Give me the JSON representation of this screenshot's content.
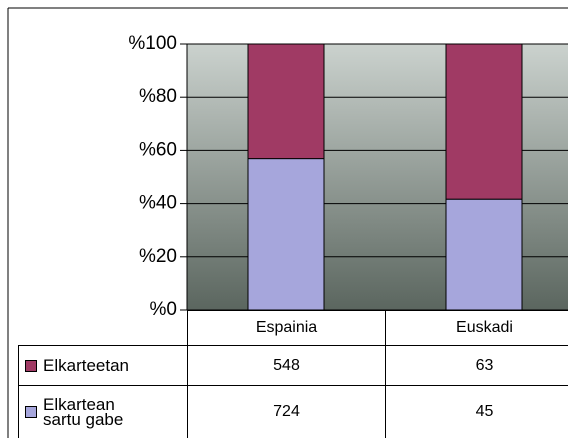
{
  "chart_data": {
    "type": "bar",
    "stacked": "percent",
    "categories": [
      "Espainia",
      "Euskadi"
    ],
    "series": [
      {
        "name": "Elkarteetan",
        "color": "#a03a64",
        "values": [
          548,
          63
        ]
      },
      {
        "name": "Elkartean sartu gabe",
        "color": "#a6a6dc",
        "values": [
          724,
          45
        ]
      }
    ],
    "ylim": [
      0,
      100
    ],
    "yticks": [
      {
        "value": 0,
        "label": "%0"
      },
      {
        "value": 20,
        "label": "%20"
      },
      {
        "value": 40,
        "label": "%40"
      },
      {
        "value": 60,
        "label": "%60"
      },
      {
        "value": 80,
        "label": "%80"
      },
      {
        "value": 100,
        "label": "%100"
      }
    ],
    "grid": true,
    "data_table": true
  }
}
